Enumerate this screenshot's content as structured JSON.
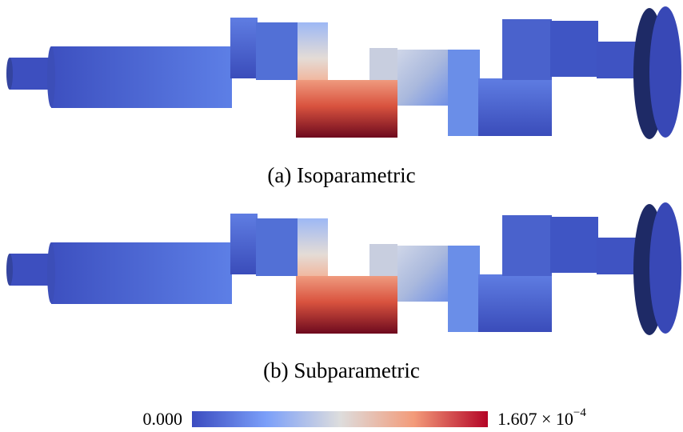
{
  "panels": [
    {
      "caption": "(a) Isoparametric"
    },
    {
      "caption": "(b) Subparametric"
    }
  ],
  "colorbar": {
    "min_label": "0.000",
    "max_label": "1.607 × 10",
    "max_exponent": "−4"
  }
}
